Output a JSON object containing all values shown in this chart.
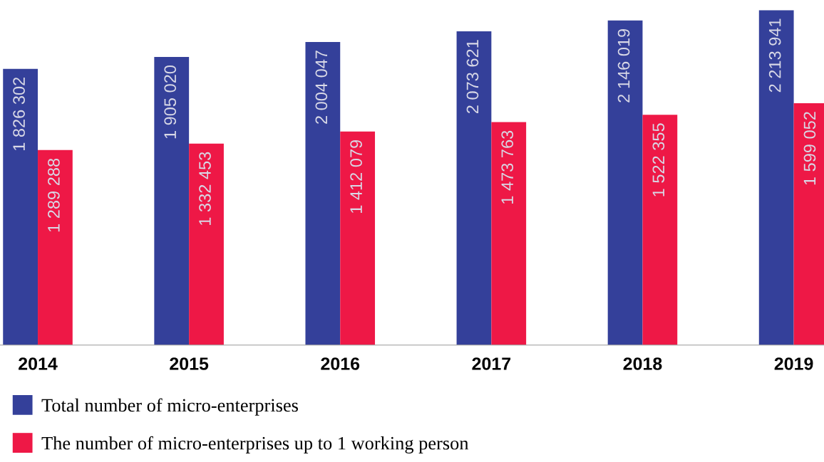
{
  "chart_data": {
    "type": "bar",
    "categories": [
      "2014",
      "2015",
      "2016",
      "2017",
      "2018",
      "2019"
    ],
    "series": [
      {
        "name": "Total number of micro-enterprises",
        "color": "#34409a",
        "values": [
          1826302,
          1905020,
          2004047,
          2073621,
          2146019,
          2213941
        ],
        "value_labels": [
          "1 826 302",
          "1 905 020",
          "2 004 047",
          "2 073 621",
          "2 146 019",
          "2 213 941"
        ]
      },
      {
        "name": "The number of micro-enterprises up to 1 working person",
        "color": "#ee1846",
        "values": [
          1289288,
          1332453,
          1412079,
          1473763,
          1522355,
          1599052
        ],
        "value_labels": [
          "1 289 288",
          "1 332 453",
          "1 412 079",
          "1 473 763",
          "1 522 355",
          "1 599 052"
        ]
      }
    ],
    "ylim": [
      0,
      2214000
    ],
    "tick_labels": "x",
    "grid": false,
    "legend": "bottom left"
  }
}
